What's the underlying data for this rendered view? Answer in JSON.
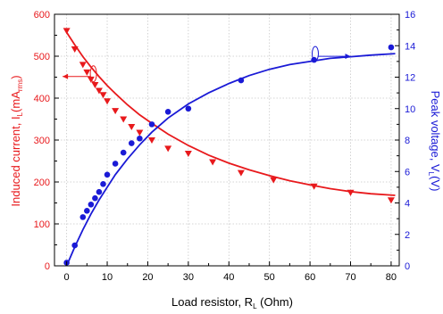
{
  "chart_data": {
    "type": "scatter",
    "title": "",
    "xlabel": {
      "main": "Load resistor, R",
      "sub": "L",
      "tail": " (Ohm)"
    },
    "ylabel_left": {
      "main": "Induced current, I",
      "sub": "L",
      "mid": "(mA",
      "sub2": "rms",
      "tail": ")"
    },
    "ylabel_right": {
      "main": "Peak voltage, V",
      "sub": "L",
      "tail": "(V)"
    },
    "xlim": [
      -3,
      82
    ],
    "ylim_left": [
      0,
      600
    ],
    "ylim_right": [
      0,
      16
    ],
    "x_ticks": [
      "0",
      "10",
      "20",
      "30",
      "40",
      "50",
      "60",
      "70",
      "80"
    ],
    "y_left_ticks": [
      "0",
      "100",
      "200",
      "300",
      "400",
      "500",
      "600"
    ],
    "y_right_ticks": [
      "0",
      "2",
      "4",
      "6",
      "8",
      "10",
      "12",
      "14",
      "16"
    ],
    "grid": true,
    "colors": {
      "current": "#e8191c",
      "voltage": "#1a1ad6",
      "grid": "#c8c8c8"
    },
    "series": [
      {
        "axis": "left",
        "marker": "triangle-down",
        "color": "#e8191c",
        "points": [
          [
            0,
            561
          ],
          [
            2,
            517
          ],
          [
            4,
            480
          ],
          [
            5,
            462
          ],
          [
            6,
            445
          ],
          [
            7,
            432
          ],
          [
            8,
            418
          ],
          [
            9,
            408
          ],
          [
            10,
            393
          ],
          [
            12,
            370
          ],
          [
            14,
            350
          ],
          [
            16,
            332
          ],
          [
            18,
            318
          ],
          [
            21,
            300
          ],
          [
            25,
            280
          ],
          [
            30,
            268
          ],
          [
            36,
            248
          ],
          [
            43,
            222
          ],
          [
            51,
            205
          ],
          [
            61,
            190
          ],
          [
            70,
            175
          ],
          [
            80,
            157
          ]
        ],
        "fit": [
          [
            0,
            557
          ],
          [
            2,
            527
          ],
          [
            4,
            499
          ],
          [
            6,
            474
          ],
          [
            8,
            451
          ],
          [
            10,
            430
          ],
          [
            12,
            411
          ],
          [
            15,
            384
          ],
          [
            18,
            360
          ],
          [
            21,
            340
          ],
          [
            25,
            314
          ],
          [
            30,
            287
          ],
          [
            35,
            264
          ],
          [
            40,
            245
          ],
          [
            45,
            229
          ],
          [
            50,
            215
          ],
          [
            55,
            203
          ],
          [
            60,
            193
          ],
          [
            65,
            184
          ],
          [
            70,
            177
          ],
          [
            75,
            172
          ],
          [
            81,
            168
          ]
        ]
      },
      {
        "axis": "right",
        "marker": "circle",
        "color": "#1a1ad6",
        "points": [
          [
            0,
            0.2
          ],
          [
            2,
            1.3
          ],
          [
            4,
            3.1
          ],
          [
            5,
            3.5
          ],
          [
            6,
            3.9
          ],
          [
            7,
            4.3
          ],
          [
            8,
            4.7
          ],
          [
            9,
            5.2
          ],
          [
            10,
            5.8
          ],
          [
            12,
            6.5
          ],
          [
            14,
            7.2
          ],
          [
            16,
            7.8
          ],
          [
            18,
            8.1
          ],
          [
            21,
            9.0
          ],
          [
            25,
            9.8
          ],
          [
            30,
            10.0
          ],
          [
            43,
            11.8
          ],
          [
            61,
            13.1
          ],
          [
            80,
            13.9
          ]
        ],
        "fit": [
          [
            0,
            0.0
          ],
          [
            2,
            1.2
          ],
          [
            4,
            2.3
          ],
          [
            6,
            3.3
          ],
          [
            8,
            4.2
          ],
          [
            10,
            5.0
          ],
          [
            12,
            5.8
          ],
          [
            15,
            6.8
          ],
          [
            18,
            7.7
          ],
          [
            21,
            8.5
          ],
          [
            25,
            9.4
          ],
          [
            30,
            10.3
          ],
          [
            35,
            11.0
          ],
          [
            40,
            11.6
          ],
          [
            45,
            12.1
          ],
          [
            50,
            12.5
          ],
          [
            55,
            12.8
          ],
          [
            60,
            13.0
          ],
          [
            65,
            13.2
          ],
          [
            70,
            13.3
          ],
          [
            75,
            13.4
          ],
          [
            81,
            13.5
          ]
        ]
      }
    ]
  }
}
